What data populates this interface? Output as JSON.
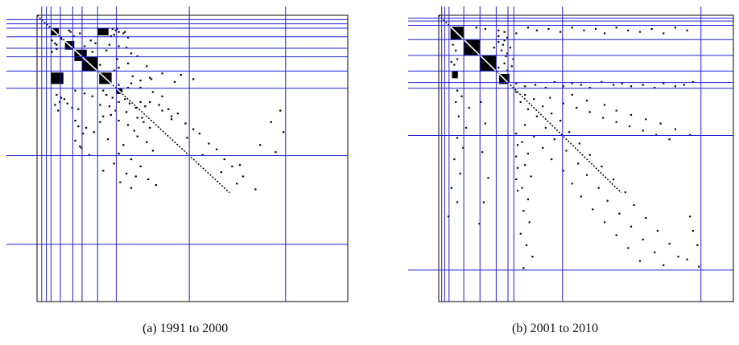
{
  "figure": {
    "caption_a": "(a) 1991 to 2000",
    "caption_b": "(b) 2001 to 2010"
  },
  "chart_data": [
    {
      "type": "heatmap",
      "title": "",
      "caption": "(a) 1991 to 2000",
      "matrix_size": 200,
      "colors": {
        "cell": "#000000",
        "divider": "#1f1fd6",
        "frame": "#000000"
      },
      "block_boundaries": [
        3,
        6,
        9,
        15,
        23,
        29,
        39,
        51,
        98,
        160
      ],
      "dense_blocks": [
        {
          "rows": [
            9,
            14
          ],
          "cols": [
            9,
            14
          ]
        },
        {
          "rows": [
            9,
            14
          ],
          "cols": [
            39,
            46
          ]
        },
        {
          "rows": [
            18,
            24
          ],
          "cols": [
            18,
            24
          ]
        },
        {
          "rows": [
            24,
            32
          ],
          "cols": [
            24,
            32
          ]
        },
        {
          "rows": [
            29,
            39
          ],
          "cols": [
            29,
            39
          ]
        },
        {
          "rows": [
            40,
            48
          ],
          "cols": [
            40,
            48
          ]
        },
        {
          "rows": [
            40,
            48
          ],
          "cols": [
            9,
            17
          ]
        },
        {
          "rows": [
            51,
            55
          ],
          "cols": [
            51,
            55
          ]
        }
      ],
      "scatter_cells": [
        [
          10,
          20
        ],
        [
          11,
          21
        ],
        [
          12,
          27
        ],
        [
          14,
          23
        ],
        [
          16,
          15
        ],
        [
          17,
          9
        ],
        [
          19,
          11
        ],
        [
          20,
          12
        ],
        [
          21,
          30
        ],
        [
          23,
          12
        ],
        [
          25,
          9
        ],
        [
          9,
          48
        ],
        [
          10,
          50
        ],
        [
          11,
          52
        ],
        [
          12,
          55
        ],
        [
          13,
          49
        ],
        [
          15,
          58
        ],
        [
          9,
          51
        ],
        [
          11,
          56
        ],
        [
          14,
          47
        ],
        [
          17,
          34
        ],
        [
          19,
          37
        ],
        [
          20,
          46
        ],
        [
          21,
          52
        ],
        [
          22,
          57
        ],
        [
          24,
          44
        ],
        [
          25,
          35
        ],
        [
          26,
          60
        ],
        [
          28,
          64
        ],
        [
          30,
          51
        ],
        [
          33,
          58
        ],
        [
          34,
          40
        ],
        [
          36,
          52
        ],
        [
          38,
          49
        ],
        [
          35,
          70
        ],
        [
          42,
          61
        ],
        [
          44,
          73
        ],
        [
          46,
          88
        ],
        [
          50,
          58
        ],
        [
          48,
          52
        ],
        [
          52,
          24
        ],
        [
          54,
          30
        ],
        [
          56,
          35
        ],
        [
          55,
          12
        ],
        [
          57,
          15
        ],
        [
          58,
          17
        ],
        [
          60,
          14
        ],
        [
          61,
          19
        ],
        [
          62,
          11
        ],
        [
          64,
          22
        ],
        [
          66,
          13
        ],
        [
          65,
          26
        ],
        [
          55,
          44
        ],
        [
          57,
          48
        ],
        [
          60,
          52
        ],
        [
          62,
          40
        ],
        [
          63,
          46
        ],
        [
          58,
          56
        ],
        [
          61,
          59
        ],
        [
          64,
          63
        ],
        [
          66,
          50
        ],
        [
          67,
          57
        ],
        [
          69,
          47
        ],
        [
          70,
          42
        ],
        [
          71,
          67
        ],
        [
          73,
          52
        ],
        [
          74,
          40
        ],
        [
          76,
          58
        ],
        [
          78,
          31
        ],
        [
          80,
          62
        ],
        [
          81,
          36
        ],
        [
          84,
          64
        ],
        [
          86,
          45
        ],
        [
          88,
          70
        ],
        [
          90,
          55
        ],
        [
          92,
          28
        ],
        [
          94,
          74
        ],
        [
          96,
          52
        ],
        [
          97,
          33
        ],
        [
          100,
          60
        ],
        [
          103,
          49
        ],
        [
          105,
          66
        ],
        [
          108,
          42
        ],
        [
          110,
          57
        ],
        [
          112,
          63
        ],
        [
          114,
          71
        ],
        [
          116,
          53
        ],
        [
          118,
          76
        ],
        [
          120,
          60
        ],
        [
          60,
          72
        ],
        [
          62,
          78
        ],
        [
          65,
          84
        ],
        [
          68,
          90
        ],
        [
          72,
          86
        ],
        [
          75,
          95
        ],
        [
          79,
          100
        ],
        [
          82,
          104
        ],
        [
          85,
          96
        ],
        [
          89,
          110
        ],
        [
          93,
          115
        ],
        [
          97,
          106
        ],
        [
          100,
          120
        ],
        [
          105,
          125
        ],
        [
          109,
          118
        ],
        [
          112,
          132
        ],
        [
          117,
          128
        ],
        [
          121,
          140
        ],
        [
          73,
          24
        ],
        [
          77,
          26
        ],
        [
          82,
          29
        ],
        [
          87,
          24
        ],
        [
          91,
          27
        ],
        [
          71,
          64
        ],
        [
          74,
          68
        ],
        [
          78,
          72
        ],
        [
          66,
          80
        ],
        [
          70,
          86
        ],
        [
          66,
          156
        ],
        [
          74,
          150
        ],
        [
          81,
          158
        ],
        [
          90,
          143
        ],
        [
          95,
          153
        ],
        [
          104,
          130
        ],
        [
          60,
          66
        ],
        [
          63,
          69
        ],
        [
          52,
          42
        ],
        [
          50,
          66
        ],
        [
          53,
          74
        ],
        [
          56,
          80
        ],
        [
          47,
          60
        ],
        [
          45,
          66
        ],
        [
          43,
          72
        ],
        [
          40,
          80
        ],
        [
          41,
          92
        ],
        [
          44,
          100
        ]
      ]
    },
    {
      "type": "heatmap",
      "title": "",
      "caption": "(b) 2001 to 2010",
      "matrix_size": 200,
      "colors": {
        "cell": "#000000",
        "divider": "#1f1fd6",
        "frame": "#000000"
      },
      "block_boundaries": [
        2,
        4,
        7,
        17,
        28,
        39,
        47,
        51,
        84,
        178
      ],
      "dense_blocks": [
        {
          "rows": [
            8,
            17
          ],
          "cols": [
            8,
            17
          ]
        },
        {
          "rows": [
            17,
            28
          ],
          "cols": [
            17,
            28
          ]
        },
        {
          "rows": [
            28,
            39
          ],
          "cols": [
            28,
            39
          ]
        },
        {
          "rows": [
            41,
            48
          ],
          "cols": [
            41,
            48
          ]
        },
        {
          "rows": [
            39,
            44
          ],
          "cols": [
            9,
            13
          ]
        }
      ],
      "scatter_cells": [
        [
          8,
          25
        ],
        [
          9,
          31
        ],
        [
          10,
          40
        ],
        [
          11,
          44
        ],
        [
          12,
          52
        ],
        [
          8,
          60
        ],
        [
          10,
          66
        ],
        [
          9,
          74
        ],
        [
          11,
          82
        ],
        [
          8,
          90
        ],
        [
          10,
          98
        ],
        [
          9,
          106
        ],
        [
          12,
          112
        ],
        [
          8,
          120
        ],
        [
          10,
          128
        ],
        [
          11,
          136
        ],
        [
          9,
          144
        ],
        [
          12,
          152
        ],
        [
          8,
          160
        ],
        [
          10,
          168
        ],
        [
          18,
          40
        ],
        [
          20,
          43
        ],
        [
          22,
          37
        ],
        [
          24,
          42
        ],
        [
          26,
          46
        ],
        [
          30,
          12
        ],
        [
          32,
          8
        ],
        [
          34,
          10
        ],
        [
          20,
          9
        ],
        [
          24,
          11
        ],
        [
          28,
          45
        ],
        [
          33,
          44
        ],
        [
          35,
          49
        ],
        [
          30,
          50
        ],
        [
          22,
          48
        ],
        [
          17,
          44
        ],
        [
          14,
          40
        ],
        [
          15,
          46
        ],
        [
          36,
          40
        ],
        [
          38,
          46
        ],
        [
          52,
          12
        ],
        [
          56,
          15
        ],
        [
          60,
          11
        ],
        [
          64,
          20
        ],
        [
          70,
          13
        ],
        [
          78,
          18
        ],
        [
          85,
          12
        ],
        [
          92,
          16
        ],
        [
          100,
          10
        ],
        [
          110,
          14
        ],
        [
          120,
          8
        ],
        [
          130,
          12
        ],
        [
          140,
          6
        ],
        [
          60,
          28
        ],
        [
          75,
          31
        ],
        [
          95,
          29
        ],
        [
          113,
          33
        ],
        [
          130,
          30
        ],
        [
          145,
          27
        ],
        [
          47,
          52
        ],
        [
          49,
          58
        ],
        [
          48,
          65
        ],
        [
          50,
          72
        ],
        [
          46,
          78
        ],
        [
          49,
          84
        ],
        [
          47,
          90
        ],
        [
          48,
          96
        ],
        [
          50,
          102
        ],
        [
          46,
          110
        ],
        [
          48,
          118
        ],
        [
          47,
          124
        ],
        [
          49,
          130
        ],
        [
          48,
          138
        ],
        [
          50,
          146
        ],
        [
          47,
          152
        ],
        [
          49,
          160
        ],
        [
          48,
          166
        ],
        [
          46,
          172
        ],
        [
          53,
          52
        ],
        [
          55,
          58
        ],
        [
          58,
          64
        ],
        [
          60,
          55
        ],
        [
          63,
          70
        ],
        [
          65,
          60
        ],
        [
          68,
          76
        ],
        [
          70,
          66
        ],
        [
          73,
          82
        ],
        [
          76,
          58
        ],
        [
          78,
          72
        ],
        [
          81,
          88
        ],
        [
          84,
          64
        ],
        [
          86,
          78
        ],
        [
          89,
          95
        ],
        [
          92,
          70
        ],
        [
          94,
          86
        ],
        [
          97,
          102
        ],
        [
          100,
          76
        ],
        [
          103,
          94
        ],
        [
          105,
          110
        ],
        [
          108,
          84
        ],
        [
          111,
          100
        ],
        [
          114,
          118
        ],
        [
          117,
          90
        ],
        [
          120,
          108
        ],
        [
          123,
          126
        ],
        [
          126,
          96
        ],
        [
          129,
          114
        ],
        [
          132,
          132
        ],
        [
          135,
          104
        ],
        [
          138,
          122
        ],
        [
          141,
          140
        ],
        [
          144,
          112
        ],
        [
          147,
          130
        ],
        [
          150,
          148
        ],
        [
          153,
          120
        ],
        [
          156,
          138
        ],
        [
          159,
          156
        ],
        [
          162,
          128
        ],
        [
          165,
          146
        ],
        [
          168,
          162
        ],
        [
          171,
          136
        ],
        [
          174,
          152
        ],
        [
          55,
          90
        ],
        [
          59,
          100
        ],
        [
          62,
          112
        ],
        [
          66,
          120
        ],
        [
          69,
          130
        ],
        [
          72,
          140
        ],
        [
          75,
          150
        ],
        [
          79,
          160
        ],
        [
          83,
          170
        ],
        [
          88,
          56
        ],
        [
          96,
          60
        ],
        [
          104,
          58
        ],
        [
          112,
          62
        ],
        [
          120,
          56
        ],
        [
          128,
          60
        ],
        [
          136,
          57
        ],
        [
          144,
          61
        ],
        [
          152,
          55
        ],
        [
          160,
          59
        ],
        [
          168,
          63
        ],
        [
          176,
          57
        ],
        [
          82,
          52
        ],
        [
          90,
          53
        ],
        [
          98,
          52
        ],
        [
          106,
          53
        ],
        [
          114,
          52
        ],
        [
          122,
          53
        ],
        [
          57,
          75
        ],
        [
          61,
          84
        ],
        [
          64,
          93
        ],
        [
          67,
          102
        ],
        [
          71,
          111
        ],
        [
          74,
          120
        ],
        [
          77,
          129
        ],
        [
          80,
          138
        ],
        [
          83,
          147
        ],
        [
          86,
          156
        ],
        [
          140,
          170
        ],
        [
          150,
          172
        ],
        [
          160,
          175
        ],
        [
          170,
          168
        ],
        [
          175,
          176
        ]
      ]
    }
  ]
}
